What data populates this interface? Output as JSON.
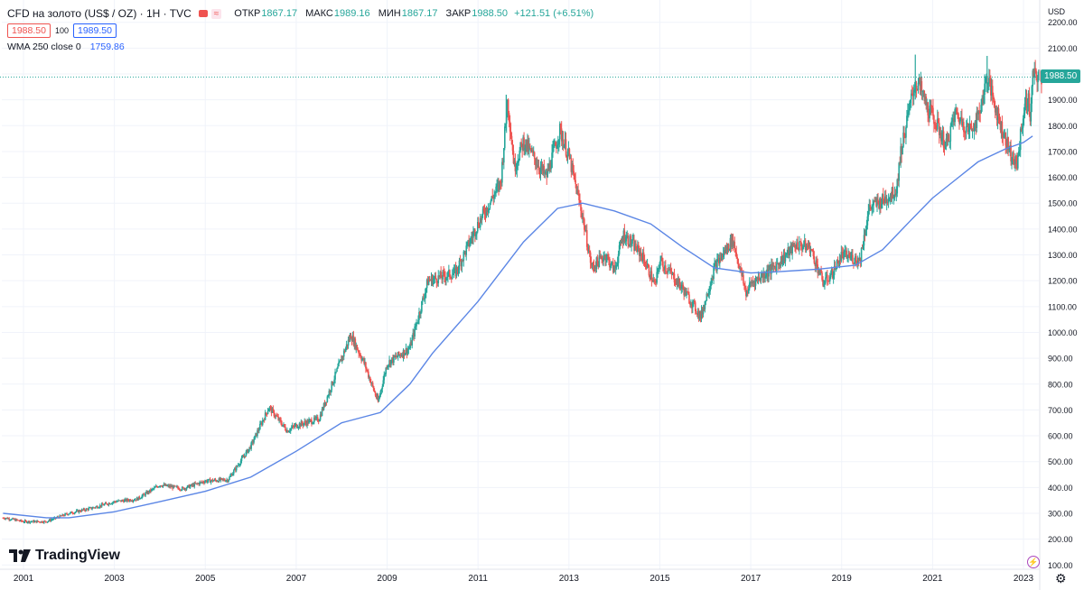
{
  "header": {
    "title": "CFD на золото (US$ / OZ) · 1H · TVC",
    "ohlc": [
      {
        "label": "ОТКР",
        "value": "1867.17"
      },
      {
        "label": "МАКС",
        "value": "1989.16"
      },
      {
        "label": "МИН",
        "value": "1867.17"
      },
      {
        "label": "ЗАКР",
        "value": "1988.50"
      }
    ],
    "change": "+121.51 (+6.51%)",
    "sell_price": "1988.50",
    "spread": "100",
    "buy_price": "1989.50",
    "wma_label": "WMA 250 close 0",
    "wma_value": "1759.86"
  },
  "branding": {
    "logo_text": "TradingView"
  },
  "colors": {
    "up": "#26a69a",
    "down": "#ef5350",
    "wma": "#5b86e5",
    "grid": "#f0f3fa",
    "axis_text": "#131722"
  },
  "chart_data": {
    "type": "candlestick",
    "currency": "USD",
    "last_price": 1988.5,
    "ylim": [
      80,
      2220
    ],
    "y_ticks": [
      100,
      200,
      300,
      400,
      500,
      600,
      700,
      800,
      900,
      1000,
      1100,
      1200,
      1300,
      1400,
      1500,
      1600,
      1700,
      1800,
      1900,
      2000,
      2100,
      2200
    ],
    "x_ticks": [
      "2001",
      "2003",
      "2005",
      "2007",
      "2009",
      "2011",
      "2013",
      "2015",
      "2017",
      "2019",
      "2021",
      "2023"
    ],
    "x_range": [
      2000.55,
      2023.4
    ],
    "price_path": [
      [
        2000.6,
        282
      ],
      [
        2001.0,
        268
      ],
      [
        2001.5,
        268
      ],
      [
        2002.0,
        300
      ],
      [
        2002.5,
        320
      ],
      [
        2003.0,
        345
      ],
      [
        2003.5,
        355
      ],
      [
        2004.0,
        410
      ],
      [
        2004.5,
        395
      ],
      [
        2005.0,
        425
      ],
      [
        2005.5,
        430
      ],
      [
        2006.0,
        560
      ],
      [
        2006.4,
        710
      ],
      [
        2006.8,
        620
      ],
      [
        2007.0,
        640
      ],
      [
        2007.5,
        665
      ],
      [
        2008.0,
        900
      ],
      [
        2008.2,
        990
      ],
      [
        2008.5,
        880
      ],
      [
        2008.8,
        730
      ],
      [
        2009.0,
        880
      ],
      [
        2009.5,
        940
      ],
      [
        2009.9,
        1200
      ],
      [
        2010.5,
        1230
      ],
      [
        2011.0,
        1420
      ],
      [
        2011.5,
        1580
      ],
      [
        2011.65,
        1900
      ],
      [
        2011.8,
        1640
      ],
      [
        2012.0,
        1740
      ],
      [
        2012.5,
        1600
      ],
      [
        2012.8,
        1780
      ],
      [
        2013.0,
        1680
      ],
      [
        2013.3,
        1450
      ],
      [
        2013.5,
        1250
      ],
      [
        2013.8,
        1300
      ],
      [
        2014.0,
        1240
      ],
      [
        2014.2,
        1380
      ],
      [
        2014.6,
        1300
      ],
      [
        2014.9,
        1180
      ],
      [
        2015.0,
        1280
      ],
      [
        2015.5,
        1170
      ],
      [
        2015.9,
        1060
      ],
      [
        2016.2,
        1250
      ],
      [
        2016.6,
        1360
      ],
      [
        2016.9,
        1150
      ],
      [
        2017.0,
        1190
      ],
      [
        2017.5,
        1250
      ],
      [
        2018.0,
        1340
      ],
      [
        2018.3,
        1330
      ],
      [
        2018.6,
        1190
      ],
      [
        2018.8,
        1230
      ],
      [
        2019.0,
        1300
      ],
      [
        2019.4,
        1280
      ],
      [
        2019.6,
        1480
      ],
      [
        2019.9,
        1510
      ],
      [
        2020.2,
        1550
      ],
      [
        2020.3,
        1700
      ],
      [
        2020.6,
        1960
      ],
      [
        2020.7,
        1960
      ],
      [
        2020.9,
        1860
      ],
      [
        2021.0,
        1840
      ],
      [
        2021.3,
        1720
      ],
      [
        2021.5,
        1850
      ],
      [
        2021.8,
        1780
      ],
      [
        2022.0,
        1830
      ],
      [
        2022.2,
        1990
      ],
      [
        2022.5,
        1800
      ],
      [
        2022.7,
        1700
      ],
      [
        2022.85,
        1640
      ],
      [
        2023.0,
        1850
      ],
      [
        2023.1,
        1910
      ],
      [
        2023.15,
        1820
      ],
      [
        2023.2,
        1988.5
      ]
    ],
    "highlights": [
      {
        "t": 2011.62,
        "high": 1920
      },
      {
        "t": 2020.62,
        "high": 2075
      },
      {
        "t": 2022.2,
        "high": 2070
      }
    ],
    "wma_path": [
      [
        2000.55,
        300
      ],
      [
        2001.5,
        283
      ],
      [
        2002.0,
        283
      ],
      [
        2003.0,
        306
      ],
      [
        2004.0,
        345
      ],
      [
        2005.0,
        385
      ],
      [
        2006.0,
        440
      ],
      [
        2007.0,
        540
      ],
      [
        2008.0,
        650
      ],
      [
        2008.85,
        690
      ],
      [
        2009.5,
        800
      ],
      [
        2010.0,
        920
      ],
      [
        2011.0,
        1120
      ],
      [
        2012.0,
        1350
      ],
      [
        2012.75,
        1480
      ],
      [
        2013.3,
        1500
      ],
      [
        2014.0,
        1470
      ],
      [
        2014.8,
        1420
      ],
      [
        2015.5,
        1330
      ],
      [
        2016.2,
        1250
      ],
      [
        2017.0,
        1230
      ],
      [
        2017.6,
        1235
      ],
      [
        2018.5,
        1245
      ],
      [
        2019.3,
        1260
      ],
      [
        2019.9,
        1320
      ],
      [
        2020.5,
        1430
      ],
      [
        2021.0,
        1520
      ],
      [
        2021.5,
        1590
      ],
      [
        2022.0,
        1660
      ],
      [
        2022.6,
        1710
      ],
      [
        2023.0,
        1735
      ],
      [
        2023.2,
        1759.86
      ]
    ]
  }
}
